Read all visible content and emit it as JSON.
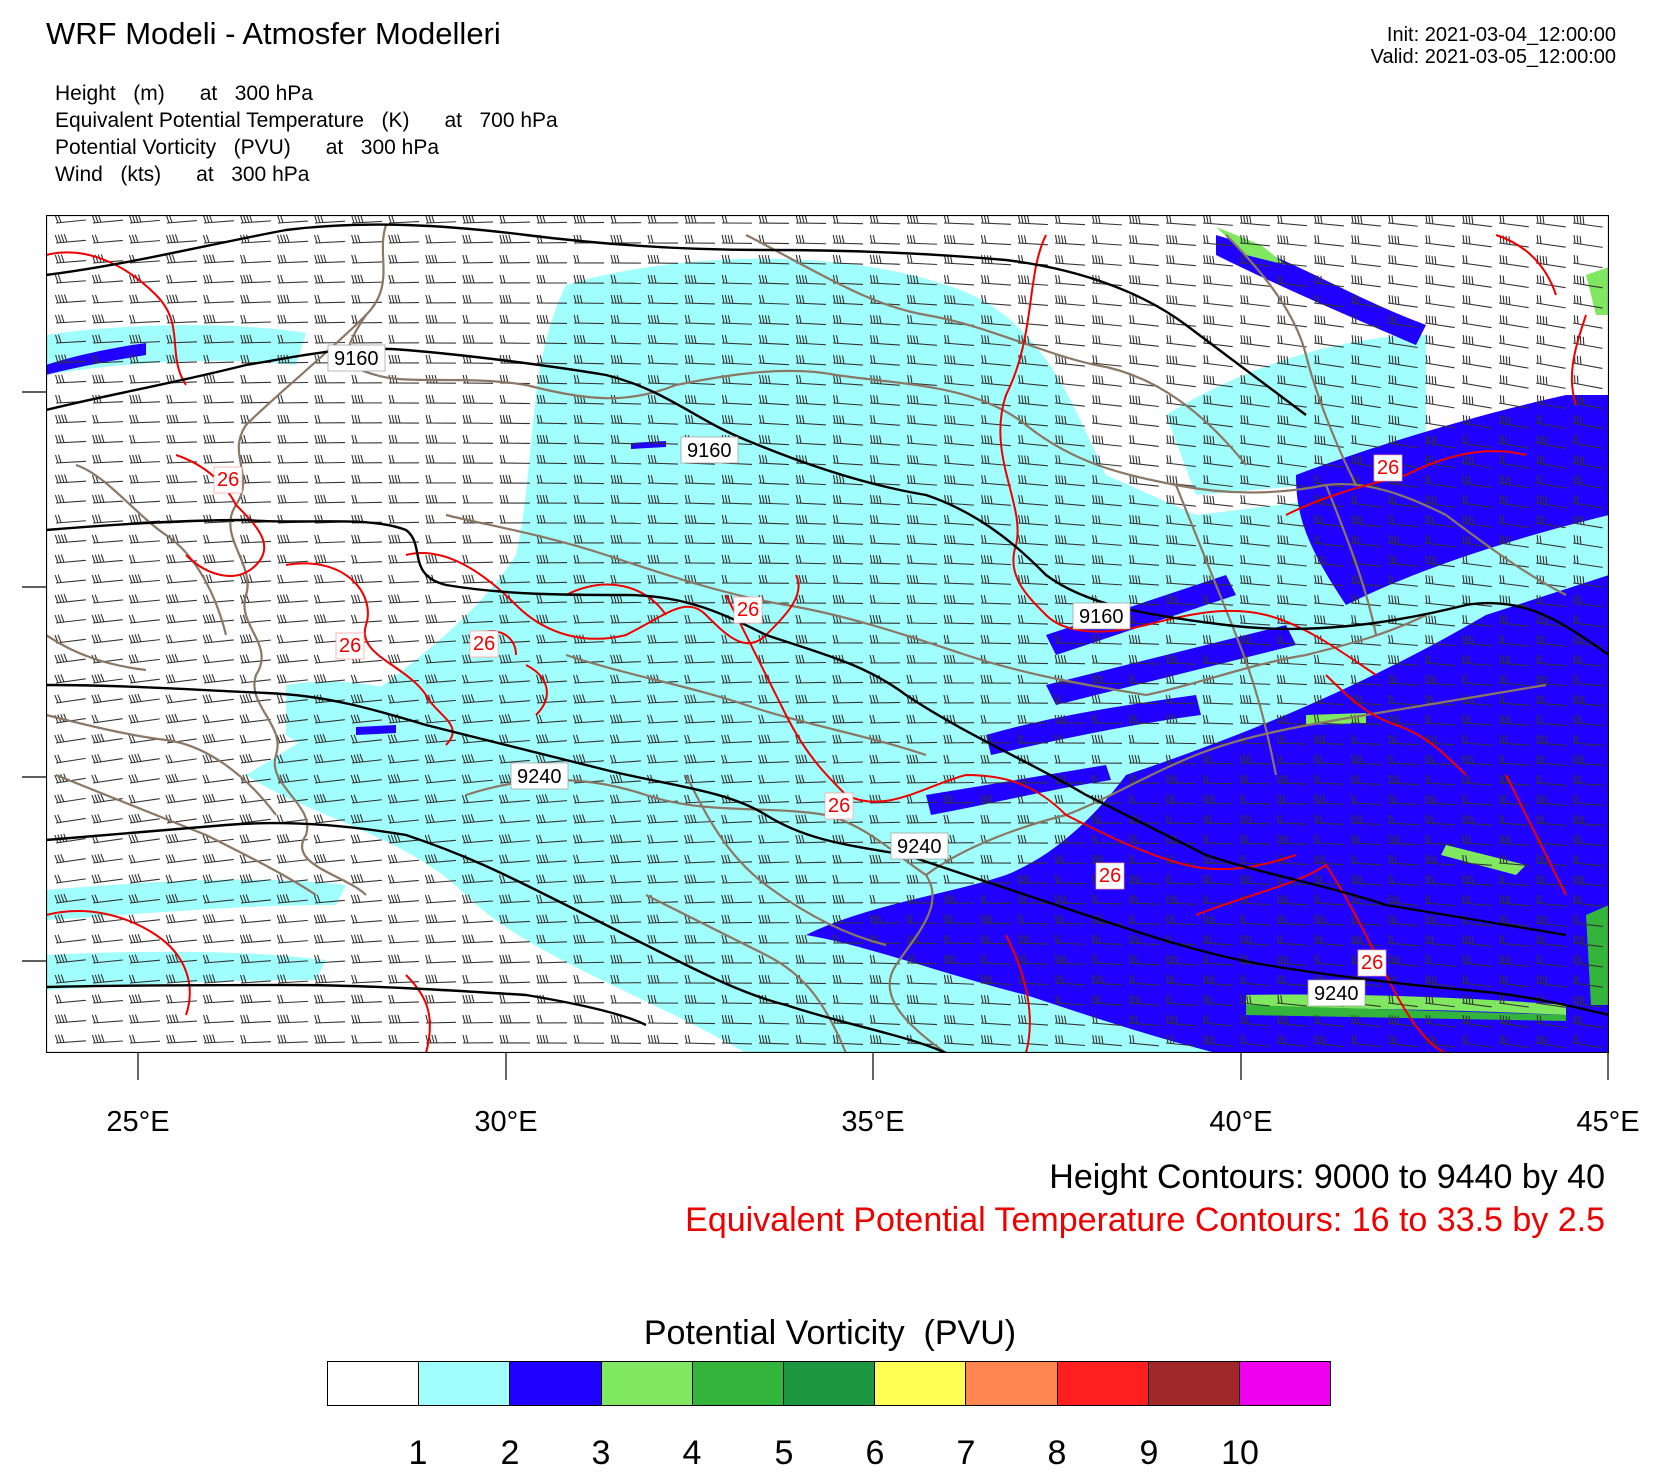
{
  "header": {
    "title": "WRF Modeli - Atmosfer Modelleri",
    "init": "Init: 2021-03-04_12:00:00",
    "valid": "Valid: 2021-03-05_12:00:00"
  },
  "fields": [
    "Height   (m)      at   300 hPa",
    "Equivalent Potential Temperature   (K)      at   700 hPa",
    "Potential Vorticity   (PVU)      at   300 hPa",
    "Wind   (kts)      at   300 hPa"
  ],
  "map": {
    "lon_labels": [
      "25°E",
      "30°E",
      "35°E",
      "40°E",
      "45°E"
    ],
    "height_labels": [
      "9160",
      "9160",
      "9160",
      "9240",
      "9240",
      "9240"
    ],
    "theta_e_labels": [
      "26",
      "26",
      "26",
      "26",
      "26",
      "26",
      "26",
      "26"
    ],
    "colors": {
      "height_contour": "#000000",
      "theta_e_contour": "#ee0000",
      "coastline": "#8b7765",
      "wind_barb": "#333333"
    }
  },
  "legend": {
    "height_contours": "Height Contours: 9000 to 9440 by 40",
    "theta_contours": "Equivalent Potential Temperature Contours: 16 to 33.5 by 2.5"
  },
  "colorbar": {
    "title": "Potential Vorticity  (PVU)",
    "colors": [
      "#ffffff",
      "#a0fffc",
      "#2000ff",
      "#80e860",
      "#33b53b",
      "#1c9640",
      "#ffff55",
      "#ff8650",
      "#ff1f1f",
      "#a02828",
      "#ee00ee"
    ],
    "labels": [
      "1",
      "2",
      "3",
      "4",
      "5",
      "6",
      "7",
      "8",
      "9",
      "10"
    ]
  }
}
